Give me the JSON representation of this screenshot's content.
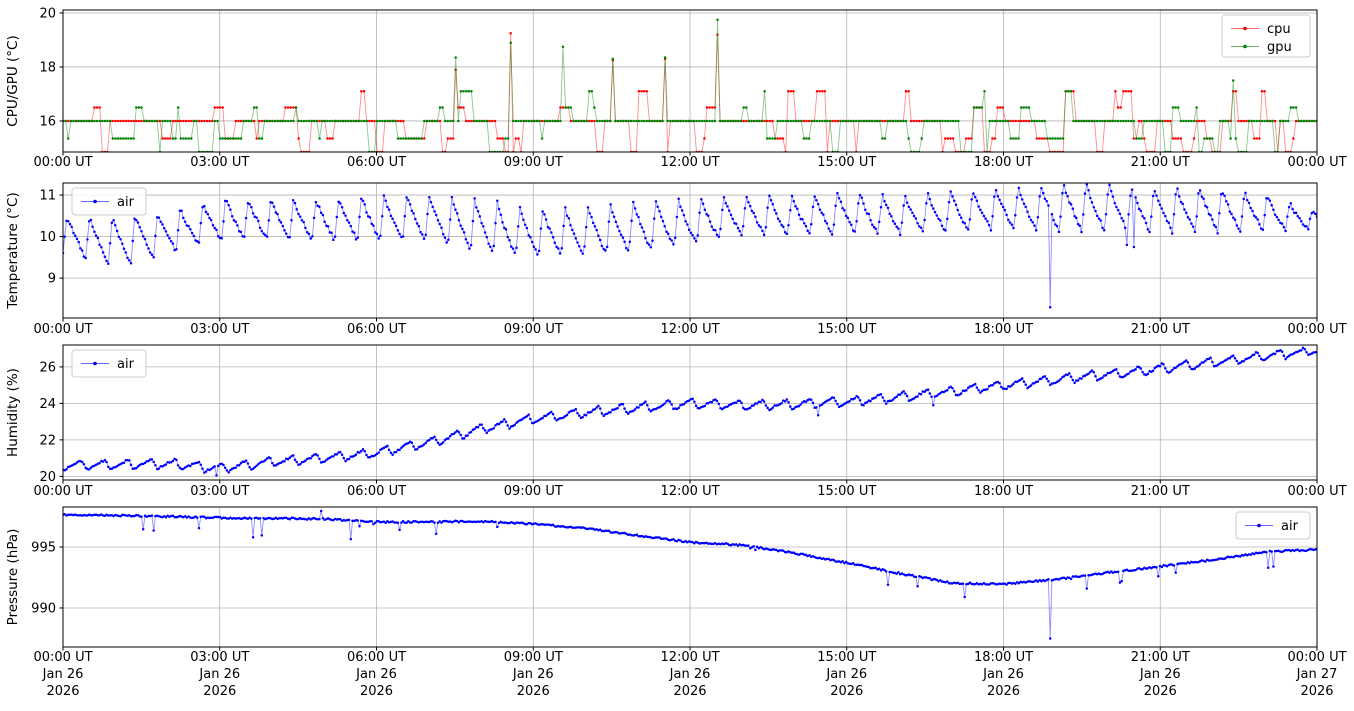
{
  "figure": {
    "background": "#ffffff",
    "grid_color": "#b4b4b4",
    "axis_color": "#000000",
    "legend_border_color": "#cccccc",
    "legend_background": "#ffffff"
  },
  "x_axis": {
    "tick_hours": [
      0,
      3,
      6,
      9,
      12,
      15,
      18,
      21,
      24
    ],
    "tick_labels": [
      "00:00 UT",
      "03:00 UT",
      "06:00 UT",
      "09:00 UT",
      "12:00 UT",
      "15:00 UT",
      "18:00 UT",
      "21:00 UT",
      "00:00 UT"
    ],
    "date_labels": [
      "Jan 26",
      "Jan 26",
      "Jan 26",
      "Jan 26",
      "Jan 26",
      "Jan 26",
      "Jan 26",
      "Jan 26",
      "Jan 27"
    ],
    "year_labels": [
      "2026",
      "2026",
      "2026",
      "2026",
      "2026",
      "2026",
      "2026",
      "2026",
      "2026"
    ]
  },
  "chart_data": [
    {
      "id": "cpu_gpu",
      "type": "line",
      "ylabel": "CPU/GPU (°C)",
      "ylim": [
        14.85,
        20.11
      ],
      "yticks": [
        16,
        18,
        20
      ],
      "xlim_hours": [
        0,
        24
      ],
      "grid": true,
      "legend": {
        "loc": "upper right",
        "entries": [
          {
            "label": "cpu",
            "color": "#ff0000"
          },
          {
            "label": "gpu",
            "color": "#008000"
          }
        ]
      },
      "series": [
        {
          "name": "cpu",
          "color": "#ff0000",
          "gen": {
            "kind": "levels",
            "n": 480,
            "seed": 11,
            "levels": [
              14.85,
              15.35,
              16.0,
              16.5,
              17.1
            ],
            "weights": [
              0.14,
              0.26,
              0.38,
              0.12,
              0.1
            ],
            "hold_min": 1,
            "hold_max": 4,
            "spikes": [
              [
                7.5,
                17.9
              ],
              [
                8.55,
                19.25
              ],
              [
                10.5,
                18.25
              ],
              [
                11.5,
                18.3
              ],
              [
                12.55,
                19.2
              ]
            ]
          }
        },
        {
          "name": "gpu",
          "color": "#008000",
          "gen": {
            "kind": "levels",
            "n": 480,
            "seed": 22,
            "levels": [
              14.85,
              15.35,
              16.0,
              16.5,
              17.1
            ],
            "weights": [
              0.1,
              0.2,
              0.48,
              0.13,
              0.09
            ],
            "hold_min": 1,
            "hold_max": 4,
            "spikes": [
              [
                7.5,
                18.35
              ],
              [
                8.55,
                18.9
              ],
              [
                9.55,
                18.75
              ],
              [
                10.5,
                18.3
              ],
              [
                11.5,
                18.35
              ],
              [
                12.55,
                19.75
              ],
              [
                22.4,
                17.5
              ]
            ]
          }
        }
      ]
    },
    {
      "id": "temperature",
      "type": "line",
      "ylabel": "Temperature (°C)",
      "ylim": [
        8.04,
        11.29
      ],
      "yticks": [
        9,
        10,
        11
      ],
      "xlim_hours": [
        0,
        24
      ],
      "grid": true,
      "legend": {
        "loc": "upper left",
        "entries": [
          {
            "label": "air",
            "color": "#0000ff"
          }
        ]
      },
      "series": [
        {
          "name": "air",
          "color": "#0000ff",
          "gen": {
            "kind": "sawtooth",
            "n": 720,
            "seed": 33,
            "period_min": 26,
            "rise_frac": 0.18,
            "noise": 0.045,
            "low": [
              9.6,
              9.25,
              9.6,
              9.9,
              9.95,
              9.9,
              9.9,
              9.9,
              9.6,
              9.5,
              9.55,
              9.6,
              9.8,
              10.0,
              10.0,
              10.05,
              10.05,
              10.1,
              10.15,
              10.1,
              10.15,
              10.1,
              10.1,
              10.15,
              10.2
            ],
            "high": [
              10.5,
              10.5,
              10.6,
              10.95,
              10.9,
              10.9,
              11.0,
              11.0,
              10.9,
              10.65,
              10.7,
              10.9,
              10.9,
              11.0,
              11.0,
              11.1,
              11.0,
              11.1,
              11.2,
              11.3,
              11.3,
              11.2,
              11.2,
              11.05,
              10.6
            ],
            "spikes": [
              [
                18.9,
                8.3
              ],
              [
                20.35,
                9.8
              ],
              [
                20.5,
                9.75
              ]
            ]
          }
        }
      ]
    },
    {
      "id": "humidity",
      "type": "line",
      "ylabel": "Humidity (%)",
      "ylim": [
        19.8,
        27.2
      ],
      "yticks": [
        20,
        22,
        24,
        26
      ],
      "xlim_hours": [
        0,
        24
      ],
      "grid": true,
      "legend": {
        "loc": "upper left",
        "entries": [
          {
            "label": "air",
            "color": "#0000ff"
          }
        ]
      },
      "series": [
        {
          "name": "air",
          "color": "#0000ff",
          "gen": {
            "kind": "sawtooth",
            "n": 720,
            "seed": 44,
            "period_min": 27,
            "rise_frac": 0.8,
            "noise": 0.05,
            "low": [
              20.32,
              20.37,
              20.42,
              20.17,
              20.52,
              20.72,
              21.02,
              21.57,
              22.32,
              22.87,
              23.22,
              23.47,
              23.72,
              23.62,
              23.67,
              23.82,
              24.07,
              24.37,
              24.72,
              25.02,
              25.32,
              25.62,
              25.97,
              26.32,
              26.67
            ],
            "high": [
              20.88,
              20.93,
              20.98,
              20.73,
              21.08,
              21.28,
              21.58,
              22.13,
              22.88,
              23.43,
              23.78,
              24.03,
              24.28,
              24.18,
              24.23,
              24.38,
              24.63,
              24.93,
              25.28,
              25.58,
              25.88,
              26.18,
              26.53,
              26.88,
              27.1
            ],
            "spikes": [
              [
                2.95,
                20.05
              ],
              [
                14.45,
                23.35
              ],
              [
                16.65,
                23.9
              ]
            ]
          }
        }
      ]
    },
    {
      "id": "pressure",
      "type": "line",
      "ylabel": "Pressure (hPa)",
      "ylim": [
        986.8,
        998.28
      ],
      "yticks": [
        990,
        995
      ],
      "xlim_hours": [
        0,
        24
      ],
      "grid": true,
      "legend": {
        "loc": "upper right",
        "entries": [
          {
            "label": "air",
            "color": "#0000ff"
          }
        ]
      },
      "series": [
        {
          "name": "air",
          "color": "#0000ff",
          "gen": {
            "kind": "trend",
            "n": 720,
            "seed": 55,
            "noise": 0.07,
            "dip_prob": 0.012,
            "dip_max": 1.0,
            "anchors": [
              997.65,
              997.6,
              997.5,
              997.4,
              997.35,
              997.3,
              997.05,
              997.05,
              997.1,
              996.9,
              996.55,
              995.95,
              995.4,
              995.15,
              994.5,
              993.7,
              992.85,
              992.05,
              991.95,
              992.35,
              992.9,
              993.4,
              993.95,
              994.6,
              994.8
            ],
            "spikes": [
              [
                1.55,
                996.45
              ],
              [
                1.75,
                996.35
              ],
              [
                2.6,
                996.55
              ],
              [
                3.65,
                995.8
              ],
              [
                3.8,
                995.95
              ],
              [
                4.95,
                997.95
              ],
              [
                5.5,
                995.65
              ],
              [
                6.45,
                996.4
              ],
              [
                8.3,
                996.65
              ],
              [
                13.15,
                994.9
              ],
              [
                13.25,
                994.75
              ],
              [
                15.8,
                991.9
              ],
              [
                17.25,
                990.9
              ],
              [
                18.9,
                987.5
              ],
              [
                19.6,
                991.6
              ],
              [
                20.25,
                992.2
              ],
              [
                20.95,
                992.6
              ],
              [
                21.3,
                992.9
              ],
              [
                23.05,
                993.3
              ],
              [
                23.15,
                993.4
              ]
            ]
          }
        }
      ]
    }
  ]
}
